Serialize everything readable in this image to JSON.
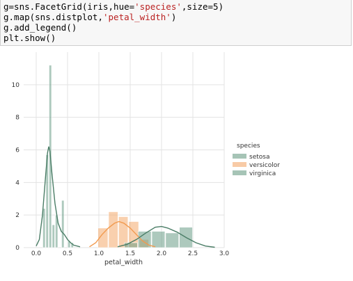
{
  "code_cell": {
    "lines": [
      {
        "parts": [
          {
            "t": "g=sns.FacetGrid(iris,hue=",
            "s": false
          },
          {
            "t": "'species'",
            "s": true
          },
          {
            "t": ",size=5)",
            "s": false
          }
        ]
      },
      {
        "parts": [
          {
            "t": "g.map(sns.distplot,",
            "s": false
          },
          {
            "t": "'petal_width'",
            "s": true
          },
          {
            "t": ")",
            "s": false
          }
        ]
      },
      {
        "parts": [
          {
            "t": "g.add_legend()",
            "s": false
          }
        ]
      },
      {
        "parts": [
          {
            "t": "plt.show()",
            "s": false
          }
        ]
      }
    ]
  },
  "chart_data": {
    "type": "histogram_kde",
    "xlabel": "petal_width",
    "ylabel": "",
    "xlim": [
      -0.2,
      3.0
    ],
    "ylim": [
      0,
      12
    ],
    "xticks": [
      "0.0",
      "0.5",
      "1.0",
      "1.5",
      "2.0",
      "2.5",
      "3.0"
    ],
    "xtick_values": [
      0.0,
      0.5,
      1.0,
      1.5,
      2.0,
      2.5,
      3.0
    ],
    "yticks": [
      "0",
      "2",
      "4",
      "6",
      "8",
      "10"
    ],
    "ytick_values": [
      0,
      2,
      4,
      6,
      8,
      10
    ],
    "grid": true,
    "legend": {
      "title": "species",
      "position": "right",
      "entries": [
        "setosa",
        "versicolor",
        "virginica"
      ]
    },
    "series": [
      {
        "name": "setosa",
        "color": "#6a9c86",
        "bins": [
          {
            "x0": 0.1,
            "x1": 0.15,
            "h": 2.4
          },
          {
            "x0": 0.15,
            "x1": 0.2,
            "h": 5.7
          },
          {
            "x0": 0.2,
            "x1": 0.25,
            "h": 11.2
          },
          {
            "x0": 0.25,
            "x1": 0.3,
            "h": 1.4
          },
          {
            "x0": 0.3,
            "x1": 0.35,
            "h": 2.0
          },
          {
            "x0": 0.4,
            "x1": 0.45,
            "h": 2.9
          },
          {
            "x0": 0.5,
            "x1": 0.55,
            "h": 0.4
          },
          {
            "x0": 0.55,
            "x1": 0.6,
            "h": 0.3
          }
        ],
        "kde": [
          [
            0.0,
            0.1
          ],
          [
            0.05,
            0.5
          ],
          [
            0.1,
            2.0
          ],
          [
            0.15,
            4.4
          ],
          [
            0.18,
            5.8
          ],
          [
            0.2,
            6.2
          ],
          [
            0.22,
            5.9
          ],
          [
            0.25,
            4.6
          ],
          [
            0.3,
            2.7
          ],
          [
            0.35,
            1.5
          ],
          [
            0.4,
            1.0
          ],
          [
            0.45,
            0.8
          ],
          [
            0.5,
            0.5
          ],
          [
            0.55,
            0.3
          ],
          [
            0.6,
            0.15
          ],
          [
            0.7,
            0.05
          ]
        ]
      },
      {
        "name": "versicolor",
        "color": "#f4a96b",
        "bins": [
          {
            "x0": 0.98,
            "x1": 1.15,
            "h": 1.2
          },
          {
            "x0": 1.15,
            "x1": 1.31,
            "h": 2.2
          },
          {
            "x0": 1.31,
            "x1": 1.47,
            "h": 1.9
          },
          {
            "x0": 1.47,
            "x1": 1.64,
            "h": 1.6
          },
          {
            "x0": 1.64,
            "x1": 1.8,
            "h": 0.5
          }
        ],
        "kde": [
          [
            0.85,
            0.05
          ],
          [
            0.95,
            0.3
          ],
          [
            1.05,
            0.8
          ],
          [
            1.15,
            1.2
          ],
          [
            1.25,
            1.5
          ],
          [
            1.32,
            1.6
          ],
          [
            1.4,
            1.5
          ],
          [
            1.5,
            1.2
          ],
          [
            1.6,
            0.8
          ],
          [
            1.7,
            0.4
          ],
          [
            1.8,
            0.15
          ],
          [
            1.9,
            0.05
          ]
        ]
      },
      {
        "name": "virginica",
        "color": "#6a9c86",
        "bins": [
          {
            "x0": 1.4,
            "x1": 1.62,
            "h": 0.3
          },
          {
            "x0": 1.62,
            "x1": 1.84,
            "h": 1.0
          },
          {
            "x0": 1.84,
            "x1": 2.06,
            "h": 1.0
          },
          {
            "x0": 2.06,
            "x1": 2.28,
            "h": 0.9
          },
          {
            "x0": 2.28,
            "x1": 2.5,
            "h": 1.25
          }
        ],
        "kde": [
          [
            1.3,
            0.05
          ],
          [
            1.45,
            0.2
          ],
          [
            1.6,
            0.5
          ],
          [
            1.75,
            0.9
          ],
          [
            1.9,
            1.25
          ],
          [
            2.0,
            1.3
          ],
          [
            2.1,
            1.2
          ],
          [
            2.25,
            0.95
          ],
          [
            2.4,
            0.6
          ],
          [
            2.55,
            0.3
          ],
          [
            2.7,
            0.1
          ],
          [
            2.85,
            0.02
          ]
        ]
      }
    ]
  }
}
